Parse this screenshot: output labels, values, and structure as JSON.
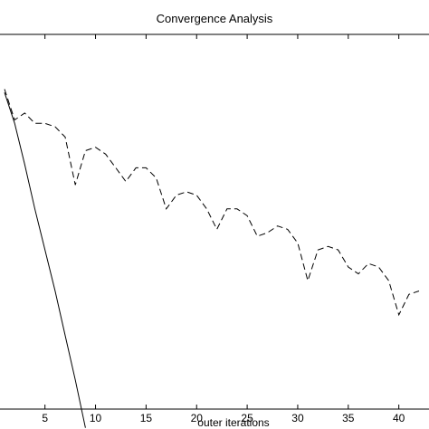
{
  "chart_data": {
    "type": "line",
    "title": "Convergence Analysis",
    "xlabel": "outer iterations",
    "ylabel": "",
    "xlim": [
      1,
      42
    ],
    "ylim": [
      0,
      1
    ],
    "x_ticks": [
      5,
      10,
      15,
      20,
      25,
      30,
      35,
      40
    ],
    "grid": false,
    "series": [
      {
        "style": "solid",
        "x": [
          1,
          2,
          3,
          4,
          5,
          6,
          7,
          8,
          9
        ],
        "values": [
          0.92,
          0.83,
          0.71,
          0.58,
          0.46,
          0.34,
          0.21,
          0.08,
          -0.06
        ]
      },
      {
        "style": "dashed",
        "x": [
          1,
          2,
          3,
          4,
          5,
          6,
          7,
          8,
          9,
          10,
          11,
          12,
          13,
          14,
          15,
          16,
          17,
          18,
          19,
          20,
          21,
          22,
          23,
          24,
          25,
          26,
          27,
          28,
          29,
          30,
          31,
          32,
          33,
          34,
          35,
          36,
          37,
          38,
          39,
          40,
          41,
          42
        ],
        "values": [
          0.93,
          0.84,
          0.86,
          0.83,
          0.83,
          0.82,
          0.79,
          0.65,
          0.75,
          0.76,
          0.74,
          0.7,
          0.66,
          0.7,
          0.7,
          0.67,
          0.58,
          0.62,
          0.63,
          0.62,
          0.58,
          0.52,
          0.58,
          0.58,
          0.56,
          0.5,
          0.51,
          0.53,
          0.52,
          0.48,
          0.37,
          0.46,
          0.47,
          0.46,
          0.41,
          0.39,
          0.42,
          0.41,
          0.37,
          0.27,
          0.33,
          0.34
        ]
      }
    ]
  }
}
